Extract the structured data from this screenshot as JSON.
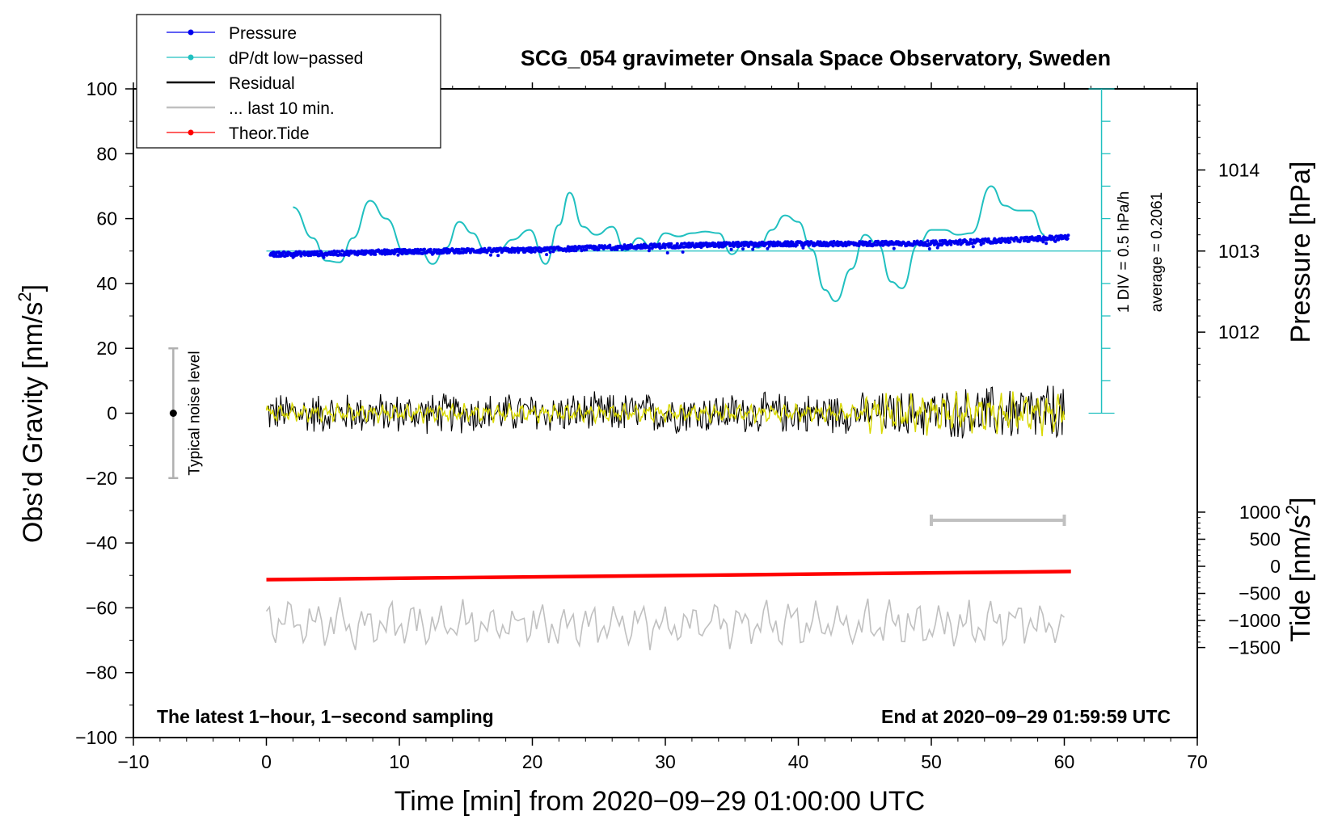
{
  "chart_data": {
    "type": "line",
    "title": "SCG_054 gravimeter Onsala Space Observatory, Sweden",
    "xlabel": "Time [min] from 2020−09−29 01:00:00 UTC",
    "ylabel": "Obs’d Gravity [nm/s²]",
    "ylabel_text": "Obs’d Gravity [nm/s",
    "ylabel_sup": "2",
    "ylabel_close": "]",
    "xlim": [
      -10,
      70
    ],
    "ylim": [
      -100,
      100
    ],
    "xticks": [
      -10,
      0,
      10,
      20,
      30,
      40,
      50,
      60,
      70
    ],
    "xtick_labels": [
      "−10",
      "0",
      "10",
      "20",
      "30",
      "40",
      "50",
      "60",
      "70"
    ],
    "yticks": [
      -100,
      -80,
      -60,
      -40,
      -20,
      0,
      20,
      40,
      60,
      80,
      100
    ],
    "ytick_labels": [
      "−100",
      "−80",
      "−60",
      "−40",
      "−20",
      "0",
      "20",
      "40",
      "60",
      "80",
      "100"
    ],
    "pressure_axis": {
      "label": "Pressure [hPa]",
      "ticks": [
        1012,
        1013,
        1014
      ],
      "tick_labels": [
        "1012",
        "1013",
        "1014"
      ],
      "gravity_at_1013": 50,
      "gravity_per_hPa": 25
    },
    "tide_axis": {
      "label_text": "Tide [nm/s",
      "label_sup": "2",
      "label_close": "]",
      "ticks": [
        1000,
        500,
        0,
        -500,
        -1000,
        -1500
      ],
      "tick_labels": [
        "1000",
        "500",
        "0",
        "−500",
        "−1000",
        "−1500"
      ],
      "gravity_at_zero": -47.2,
      "gravity_per_unit": 0.0167
    },
    "dpdt_scale": {
      "div_label": "1 DIV = 0.5 hPa/h",
      "average_label": "average = 0.2061",
      "baseline_gravity": 50,
      "axis_from_gravity": 0,
      "axis_to_gravity": 100,
      "div_step_gravity": 10
    },
    "noise_indicator": {
      "label": "Typical noise level",
      "x": -7,
      "low": -20,
      "high": 20
    },
    "last10_bar": {
      "x_start": 50,
      "x_end": 60,
      "y": -33
    },
    "legend": [
      {
        "label": "Pressure",
        "color": "#0000ee",
        "marker": true
      },
      {
        "label": "dP/dt low−passed",
        "color": "#20c0c0",
        "marker": true
      },
      {
        "label": "Residual",
        "color": "#000000",
        "marker": false
      },
      {
        "label": "... last 10 min.",
        "color": "#c0c0c0",
        "marker": false
      },
      {
        "label": "Theor.Tide",
        "color": "#ff0000",
        "marker": true
      }
    ],
    "footer_left": "The latest 1−hour, 1−second sampling",
    "footer_right": "End at 2020−09−29 01:59:59 UTC",
    "series": [
      {
        "name": "Pressure",
        "color": "#0000ee",
        "units": "gravity-axis equivalent",
        "x": [
          0,
          5,
          10,
          15,
          20,
          25,
          30,
          35,
          40,
          45,
          50,
          55,
          60
        ],
        "values": [
          49,
          49.3,
          49.8,
          50.1,
          50.3,
          51,
          51.6,
          52,
          52.2,
          52.3,
          52.4,
          53.2,
          54.2
        ]
      },
      {
        "name": "dP/dt low-passed",
        "color": "#20c0c0",
        "x": [
          2,
          3.5,
          4.5,
          5.5,
          6.5,
          7.8,
          9,
          10.5,
          11.5,
          12.5,
          13.5,
          14.5,
          15.5,
          16.5,
          17.5,
          18.5,
          19.8,
          21,
          22,
          22.8,
          23.8,
          24.8,
          26,
          27,
          28,
          29,
          30,
          31,
          32,
          33,
          34,
          35,
          36,
          37,
          38,
          39,
          40,
          41,
          42,
          42.8,
          44,
          45,
          46,
          47,
          47.8,
          49,
          50,
          51,
          52,
          53,
          54.5,
          55.5,
          56.5,
          57.5,
          58.5
        ],
        "values": [
          63.5,
          54,
          47,
          46.5,
          54,
          65.5,
          60,
          49,
          50.5,
          46,
          51,
          59,
          55.5,
          50,
          50.5,
          53.5,
          56.5,
          46,
          58,
          68,
          57.5,
          55,
          57.5,
          50,
          54,
          51,
          55.5,
          54.5,
          55.5,
          56,
          55.5,
          49,
          53,
          51,
          56.5,
          61,
          59,
          50.5,
          38,
          34.5,
          44.5,
          55,
          52,
          40.5,
          38.5,
          52,
          56.5,
          56.5,
          55,
          55.5,
          70,
          64,
          62.5,
          62.5,
          55
        ]
      },
      {
        "name": "Residual",
        "color": "#000000",
        "x_start": 0,
        "x_end": 60,
        "samples": 720,
        "amplitude_early": 7,
        "amplitude_late": 11
      },
      {
        "name": "Residual smoothed",
        "color": "#d8d800",
        "x_start": 0,
        "x_end": 60,
        "amplitude": 2.5
      },
      {
        "name": "... last 10 min.",
        "color": "#c0c0c0",
        "x_start": 0,
        "x_end": 60,
        "samples": 260,
        "center": -65,
        "amplitude": 7
      },
      {
        "name": "Theor.Tide",
        "color": "#ff0000",
        "x": [
          0,
          60.5
        ],
        "values": [
          -51.3,
          -48.8
        ]
      }
    ]
  }
}
